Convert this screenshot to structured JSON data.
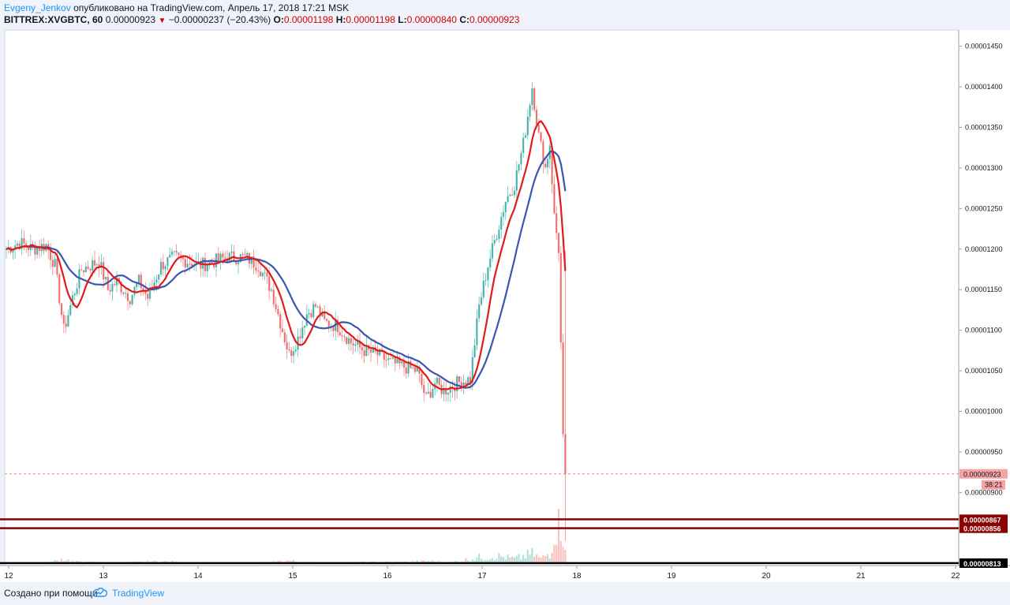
{
  "header": {
    "author": "Evgeny_Jenkov",
    "published_text": "опубликовано на TradingView.com, Апрель 17, 2018 17:21 MSK",
    "symbol": "BITTREX:XVGBTC, 60",
    "last_price": "0.00000923",
    "change_arrow": "▼",
    "change": "−0.00000237 (−20.43%)",
    "o_label": "O:",
    "o_value": "0.00001198",
    "h_label": "H:",
    "h_value": "0.00001198",
    "l_label": "L:",
    "l_value": "0.00000840",
    "c_label": "C:",
    "c_value": "0.00000923"
  },
  "footer": {
    "created_with": "Создано при помощи",
    "brand": "TradingView"
  },
  "colors": {
    "up": "#26a69a",
    "down": "#ef5350",
    "ma_fast": "#e01b1b",
    "ma_slow": "#3b55b0",
    "level_line": "#8b0000",
    "accent": "#2196f3"
  },
  "icons": {
    "logo": "tradingview-cloud-icon",
    "change_direction": "down-triangle-icon"
  },
  "chart_data": {
    "type": "candlestick",
    "y_tick_labels": [
      "0.00001450",
      "0.00001400",
      "0.00001350",
      "0.00001300",
      "0.00001250",
      "0.00001200",
      "0.00001150",
      "0.00001100",
      "0.00001050",
      "0.00001000",
      "0.00000950",
      "0.00000900"
    ],
    "x_tick_labels": [
      "12",
      "13",
      "14",
      "15",
      "16",
      "17",
      "18",
      "19",
      "20",
      "21",
      "22"
    ],
    "ylim": [
      8.1e-06,
      1.47e-05
    ],
    "current_price_label": "0.00000923",
    "countdown_label": "38:21",
    "horizontal_levels": [
      {
        "label": "0.00000867",
        "value": 8.67e-06,
        "color": "#8b0000"
      },
      {
        "label": "0.00000856",
        "value": 8.56e-06,
        "color": "#8b0000"
      },
      {
        "label": "0.00000813",
        "value": 8.13e-06,
        "color": "#000000"
      }
    ],
    "price_anchors": [
      [
        0,
        1.2
      ],
      [
        6,
        1.208
      ],
      [
        12,
        1.2
      ],
      [
        18,
        1.205
      ],
      [
        22,
        1.18
      ],
      [
        26,
        1.1
      ],
      [
        30,
        1.14
      ],
      [
        34,
        1.175
      ],
      [
        38,
        1.18
      ],
      [
        42,
        1.185
      ],
      [
        46,
        1.15
      ],
      [
        50,
        1.16
      ],
      [
        56,
        1.14
      ],
      [
        60,
        1.16
      ],
      [
        64,
        1.14
      ],
      [
        70,
        1.18
      ],
      [
        76,
        1.19
      ],
      [
        82,
        1.185
      ],
      [
        88,
        1.18
      ],
      [
        94,
        1.185
      ],
      [
        100,
        1.19
      ],
      [
        108,
        1.19
      ],
      [
        114,
        1.18
      ],
      [
        120,
        1.15
      ],
      [
        124,
        1.11
      ],
      [
        128,
        1.07
      ],
      [
        132,
        1.09
      ],
      [
        136,
        1.12
      ],
      [
        140,
        1.13
      ],
      [
        144,
        1.11
      ],
      [
        150,
        1.105
      ],
      [
        156,
        1.085
      ],
      [
        162,
        1.075
      ],
      [
        168,
        1.07
      ],
      [
        174,
        1.06
      ],
      [
        180,
        1.055
      ],
      [
        186,
        1.05
      ],
      [
        190,
        1.015
      ],
      [
        194,
        1.035
      ],
      [
        198,
        1.025
      ],
      [
        204,
        1.035
      ],
      [
        210,
        1.04
      ],
      [
        214,
        1.13
      ],
      [
        218,
        1.18
      ],
      [
        222,
        1.22
      ],
      [
        226,
        1.26
      ],
      [
        230,
        1.28
      ],
      [
        234,
        1.33
      ],
      [
        238,
        1.4
      ],
      [
        241,
        1.34
      ],
      [
        244,
        1.3
      ],
      [
        246,
        1.33
      ],
      [
        248,
        1.24
      ],
      [
        250,
        1.2
      ],
      [
        252,
        0.965
      ],
      [
        253,
        0.923
      ]
    ],
    "volume_anchors": [
      [
        0,
        2
      ],
      [
        20,
        4
      ],
      [
        26,
        14
      ],
      [
        30,
        6
      ],
      [
        50,
        3
      ],
      [
        70,
        7
      ],
      [
        80,
        4
      ],
      [
        100,
        3
      ],
      [
        120,
        4
      ],
      [
        126,
        9
      ],
      [
        140,
        3
      ],
      [
        160,
        4
      ],
      [
        180,
        5
      ],
      [
        192,
        8
      ],
      [
        200,
        3
      ],
      [
        214,
        18
      ],
      [
        222,
        22
      ],
      [
        230,
        14
      ],
      [
        238,
        28
      ],
      [
        242,
        14
      ],
      [
        246,
        30
      ],
      [
        250,
        140
      ],
      [
        253,
        60
      ]
    ],
    "ma_fast_period": 9,
    "ma_slow_period": 21
  }
}
